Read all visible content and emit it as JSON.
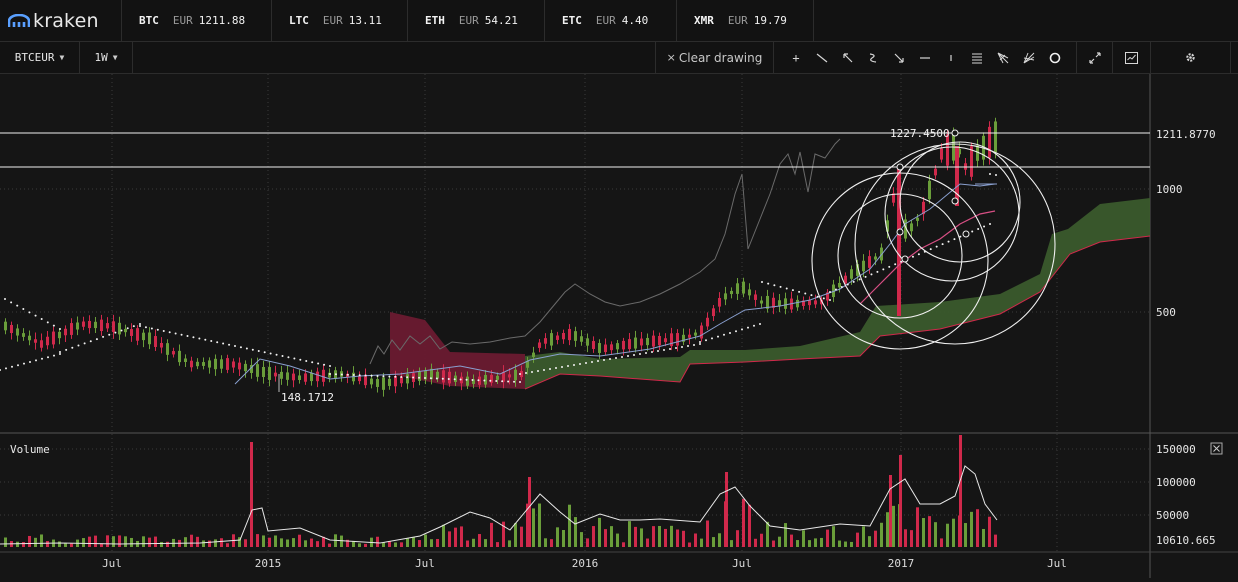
{
  "brand": {
    "name": "kraken",
    "accent": "#5aa0ff"
  },
  "tickers": [
    {
      "symbol": "BTC",
      "currency": "EUR",
      "price": "1211.88"
    },
    {
      "symbol": "LTC",
      "currency": "EUR",
      "price": "13.11"
    },
    {
      "symbol": "ETH",
      "currency": "EUR",
      "price": "54.21"
    },
    {
      "symbol": "ETC",
      "currency": "EUR",
      "price": "4.40"
    },
    {
      "symbol": "XMR",
      "currency": "EUR",
      "price": "19.79"
    }
  ],
  "toolbar": {
    "pair": "BTCEUR",
    "interval": "1W",
    "clear_drawing": "Clear drawing",
    "tools": [
      "plus-icon",
      "trend-line-icon",
      "arrow-icon",
      "wave-icon",
      "arrow-down-icon",
      "horizontal-line-icon",
      "vertical-line-icon",
      "fib-levels-icon",
      "pitchfork-icon",
      "fan-icon",
      "circle-icon"
    ],
    "fullscreen_icon": "fullscreen-icon",
    "chart_type_icon": "chart-type-icon",
    "settings_icon": "gear-icon"
  },
  "chart_data": {
    "type": "candlestick",
    "instrument": "BTCEUR",
    "interval": "1W",
    "price_axis_ticks": [
      "1211.8770",
      "1000",
      "500"
    ],
    "current_price_label": "1211.8770",
    "annotations": {
      "high_label": "1227.4500",
      "low_label": "148.1712"
    },
    "x_tick_labels": [
      "Jul",
      "2015",
      "Jul",
      "2016",
      "Jul",
      "2017",
      "Jul"
    ],
    "volume": {
      "title": "Volume",
      "axis_ticks": [
        "150000",
        "100000",
        "50000",
        "10610.665"
      ]
    },
    "colors": {
      "up": "#6a9e3a",
      "down": "#d0294b",
      "cloud_up": "#3a5a2c",
      "cloud_down": "#6a1a30",
      "grid": "#3a3a3a"
    }
  }
}
